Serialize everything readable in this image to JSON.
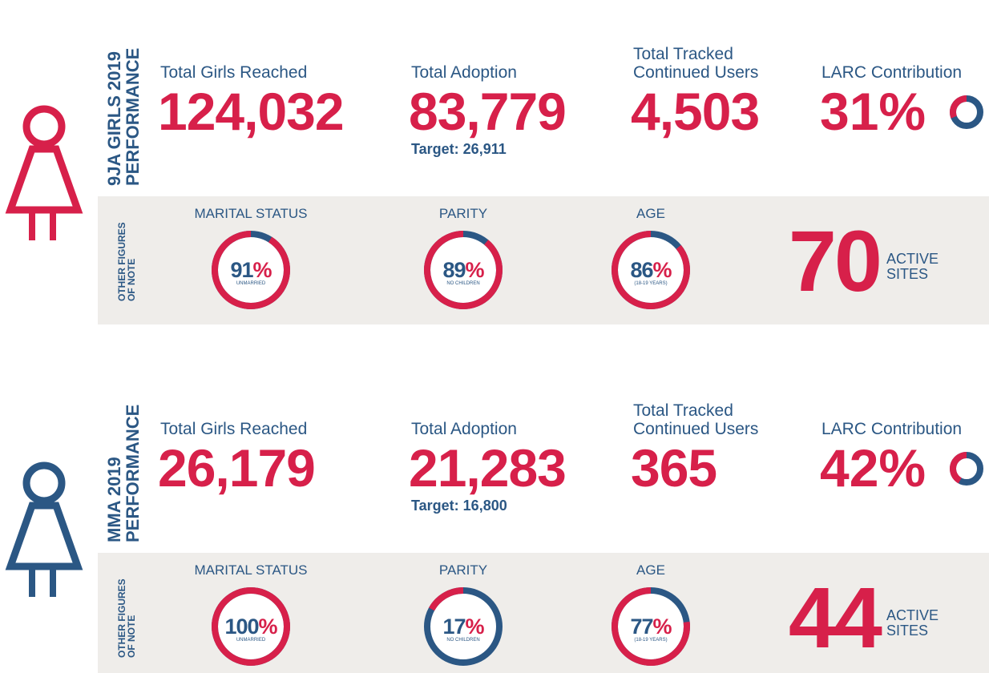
{
  "sections": [
    {
      "title_lines": [
        "9JA GIRLS 2019",
        "PERFORMANCE"
      ],
      "stats": [
        {
          "label": [
            "Total Girls Reached"
          ],
          "value": "124,032"
        },
        {
          "label": [
            "Total Adoption"
          ],
          "value": "83,779",
          "target": "Target: 26,911"
        },
        {
          "label": [
            "Total Tracked",
            "Continued Users"
          ],
          "value": "4,503"
        }
      ],
      "larc": {
        "label": "LARC Contribution",
        "value": 31,
        "unit": "%"
      },
      "other_label": [
        "OTHER FIGURES",
        "OF NOTE"
      ],
      "figures": [
        {
          "heading": "MARITAL STATUS",
          "value": 91,
          "unit": "%",
          "caption": "UNMARRIED"
        },
        {
          "heading": "PARITY",
          "value": 89,
          "unit": "%",
          "caption": "NO CHILDREN"
        },
        {
          "heading": "AGE",
          "value": 86,
          "unit": "%",
          "caption": "(18-19 YEARS)"
        }
      ],
      "sites": {
        "value": 70,
        "label": [
          "ACTIVE",
          "SITES"
        ]
      }
    },
    {
      "title_lines": [
        "MMA 2019",
        "PERFORMANCE"
      ],
      "stats": [
        {
          "label": [
            "Total Girls Reached"
          ],
          "value": "26,179"
        },
        {
          "label": [
            "Total Adoption"
          ],
          "value": "21,283",
          "target": "Target: 16,800"
        },
        {
          "label": [
            "Total Tracked",
            "Continued Users"
          ],
          "value": "365"
        }
      ],
      "larc": {
        "label": "LARC Contribution",
        "value": 42,
        "unit": "%"
      },
      "other_label": [
        "OTHER FIGURES",
        "OF NOTE"
      ],
      "figures": [
        {
          "heading": "MARITAL STATUS",
          "value": 100,
          "unit": "%",
          "caption": "UNMARRIED"
        },
        {
          "heading": "PARITY",
          "value": 17,
          "unit": "%",
          "caption": "NO CHILDREN"
        },
        {
          "heading": "AGE",
          "value": 77,
          "unit": "%",
          "caption": "(18-19 YEARS)"
        }
      ],
      "sites": {
        "value": 44,
        "label": [
          "ACTIVE",
          "SITES"
        ]
      }
    }
  ]
}
